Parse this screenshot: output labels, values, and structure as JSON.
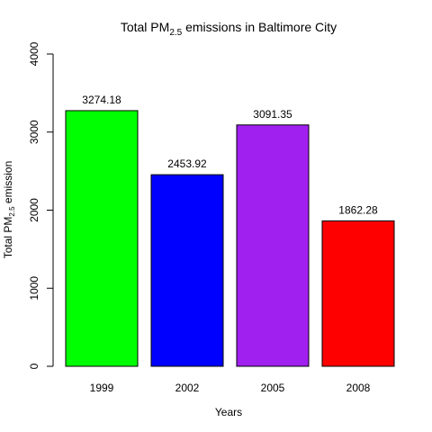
{
  "chart_data": {
    "type": "bar",
    "title": {
      "prefix": "Total PM",
      "sub": "2.5",
      "suffix": " emissions in Baltimore City"
    },
    "xlabel": "Years",
    "ylabel": {
      "prefix": "Total PM",
      "sub": "2.5",
      "suffix": " emission"
    },
    "categories": [
      "1999",
      "2002",
      "2005",
      "2008"
    ],
    "values": [
      3274.18,
      2453.92,
      3091.35,
      1862.28
    ],
    "value_labels": [
      "3274.18",
      "2453.92",
      "3091.35",
      "1862.28"
    ],
    "colors": [
      "#00ff00",
      "#0000ff",
      "#a020f0",
      "#ff0000"
    ],
    "ylim": [
      0,
      4000
    ],
    "yticks": [
      0,
      1000,
      2000,
      3000,
      4000
    ],
    "grid": false,
    "legend": "none"
  }
}
